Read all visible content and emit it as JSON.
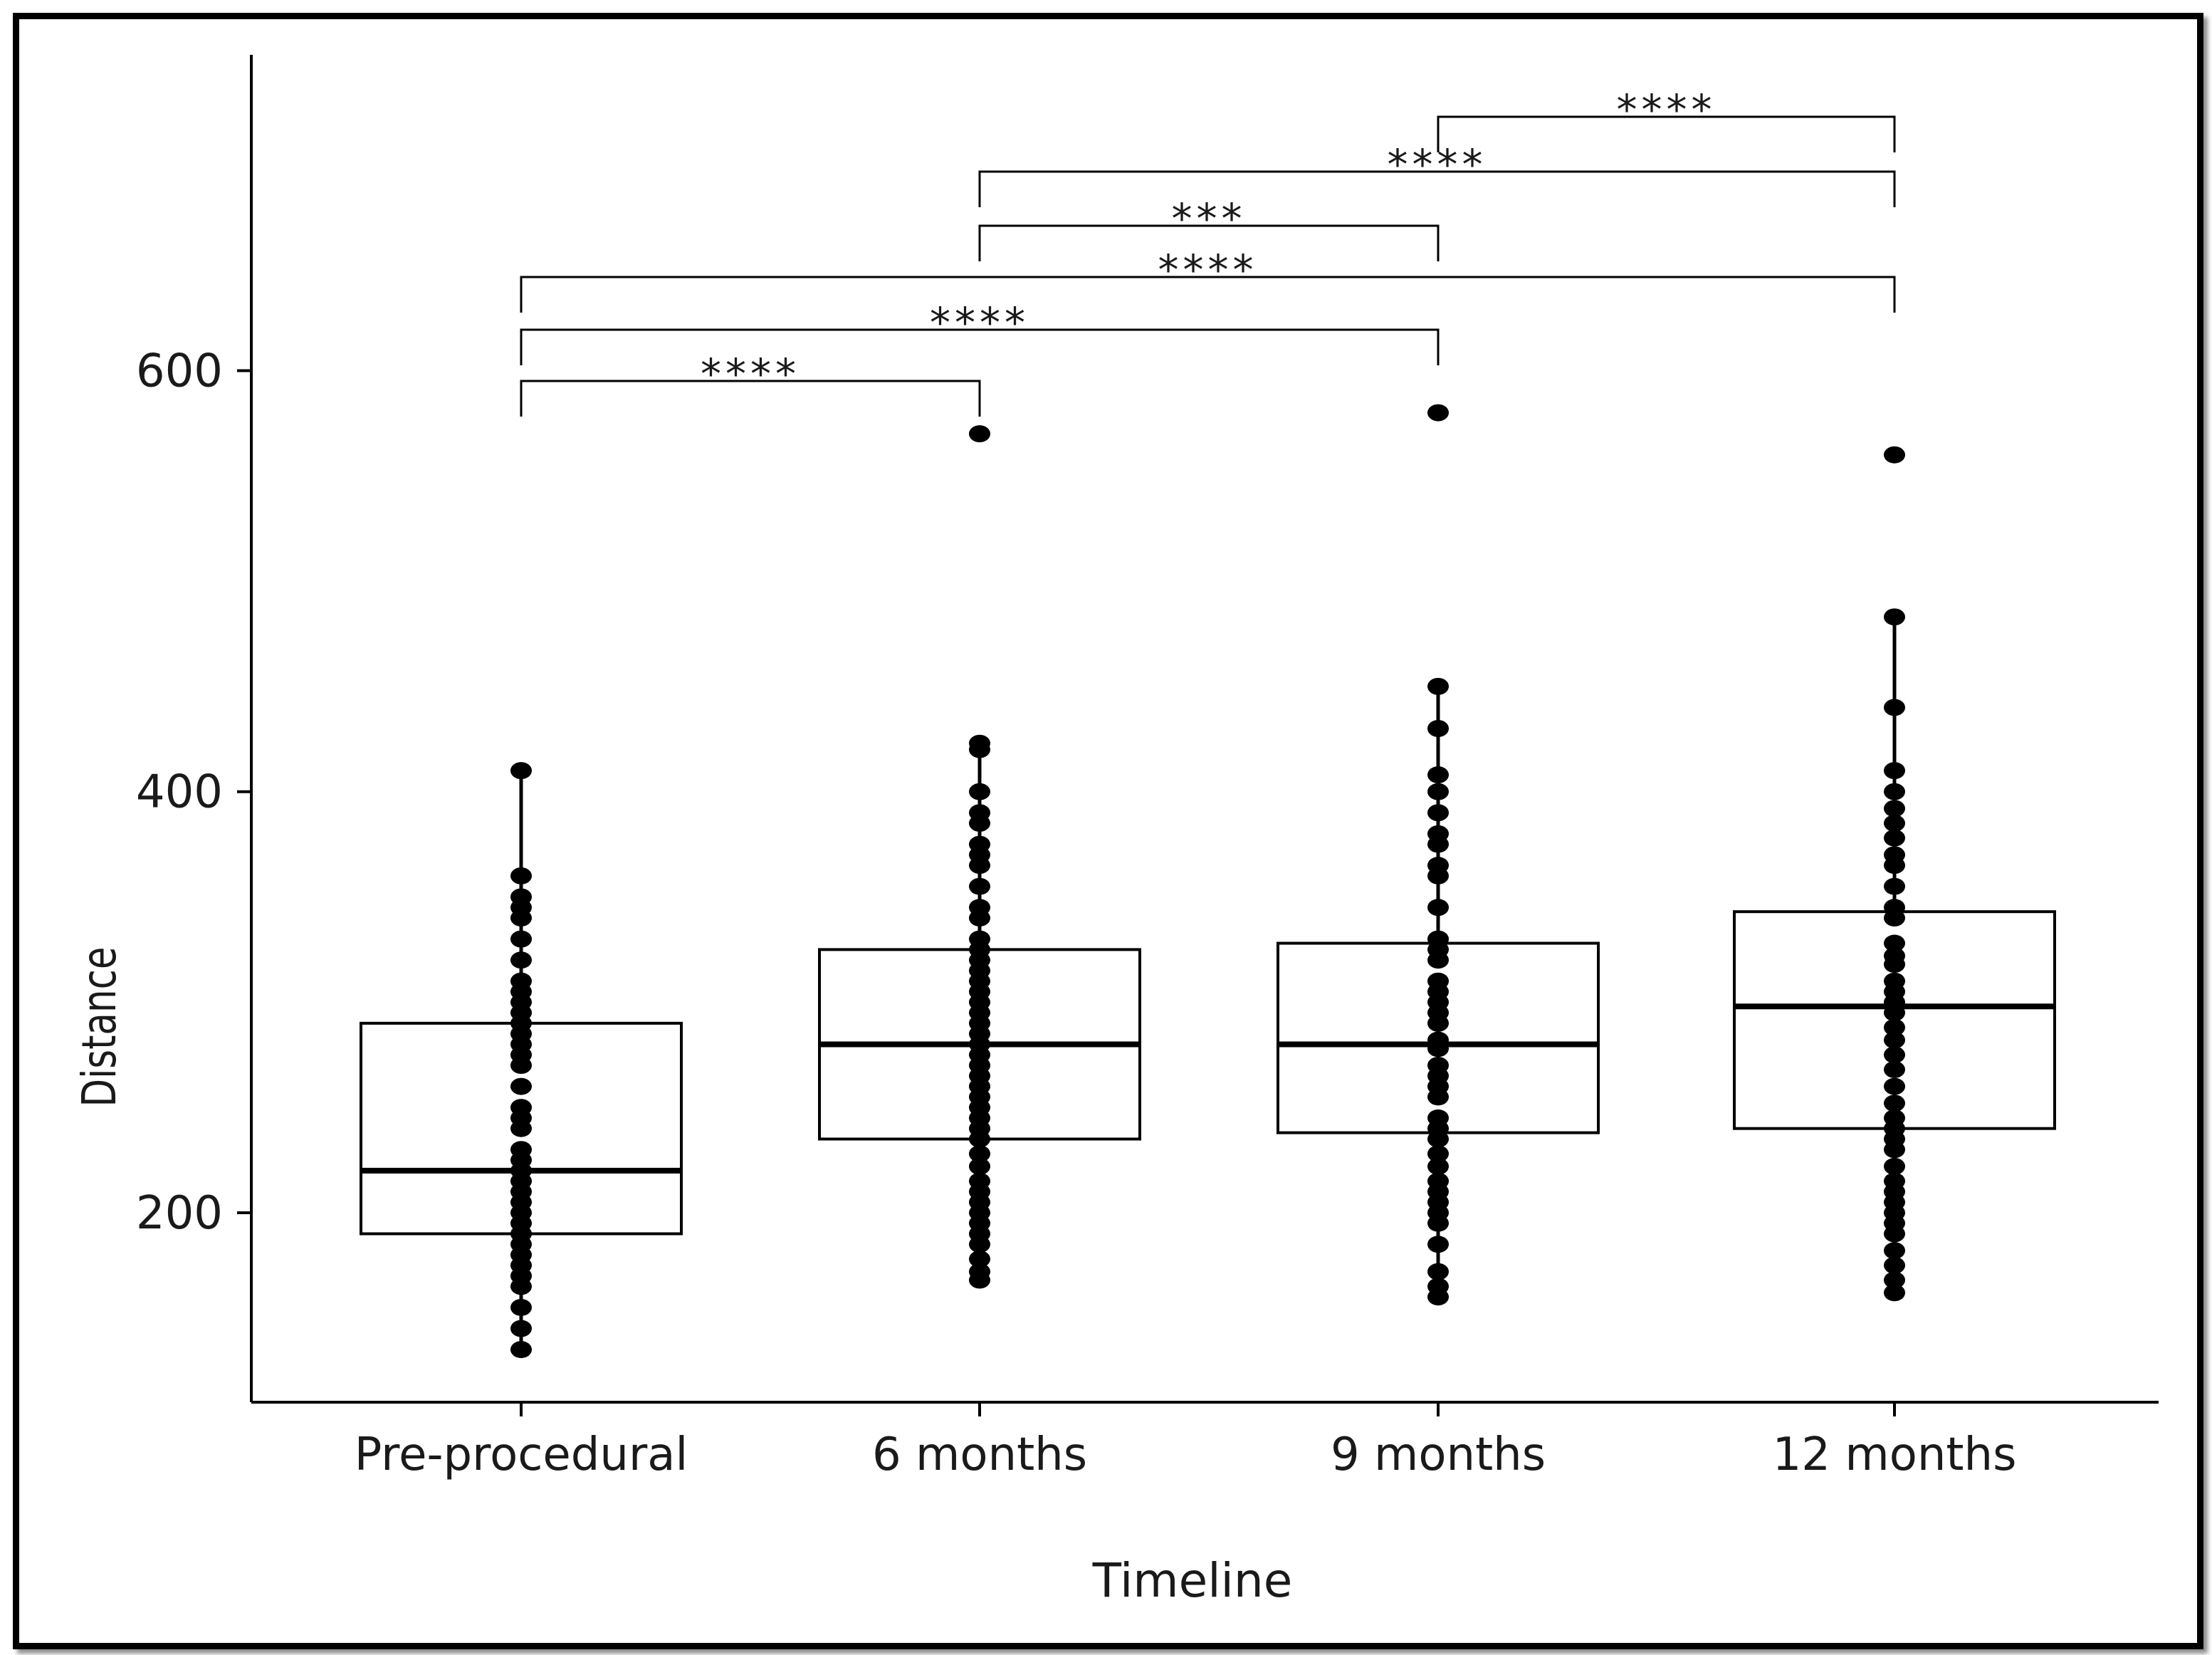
{
  "chart_data": {
    "type": "box",
    "title": "",
    "xlabel": "Timeline",
    "ylabel": "Distance",
    "ylim": [
      110,
      750
    ],
    "yticks": [
      200,
      400,
      600
    ],
    "grid": false,
    "categories": [
      "Pre-procedural",
      "6 months",
      "9 months",
      "12 months"
    ],
    "boxes": [
      {
        "category": "Pre-procedural",
        "q1": 190,
        "median": 220,
        "q3": 290,
        "whisker_low": 135,
        "whisker_high": 410
      },
      {
        "category": "6 months",
        "q1": 235,
        "median": 280,
        "q3": 325,
        "whisker_low": 165,
        "whisker_high": 420
      },
      {
        "category": "9 months",
        "q1": 238,
        "median": 280,
        "q3": 328,
        "whisker_low": 160,
        "whisker_high": 450
      },
      {
        "category": "12 months",
        "q1": 240,
        "median": 298,
        "q3": 343,
        "whisker_low": 162,
        "whisker_high": 483
      }
    ],
    "points": [
      {
        "category": "Pre-procedural",
        "values": [
          135,
          145,
          155,
          165,
          170,
          175,
          180,
          185,
          190,
          195,
          200,
          205,
          210,
          215,
          220,
          225,
          230,
          240,
          245,
          250,
          260,
          270,
          275,
          280,
          285,
          290,
          295,
          300,
          305,
          310,
          320,
          330,
          340,
          345,
          350,
          360,
          410
        ]
      },
      {
        "category": "6 months",
        "values": [
          168,
          172,
          178,
          185,
          190,
          195,
          200,
          205,
          210,
          215,
          222,
          228,
          235,
          240,
          245,
          250,
          255,
          260,
          265,
          270,
          275,
          280,
          285,
          290,
          295,
          300,
          305,
          310,
          315,
          320,
          325,
          330,
          340,
          345,
          355,
          365,
          370,
          375,
          385,
          390,
          400,
          420,
          423,
          570
        ]
      },
      {
        "category": "9 months",
        "values": [
          160,
          165,
          172,
          185,
          195,
          200,
          205,
          210,
          215,
          222,
          228,
          235,
          240,
          245,
          255,
          260,
          265,
          270,
          278,
          282,
          290,
          295,
          300,
          305,
          310,
          320,
          325,
          330,
          345,
          360,
          365,
          375,
          380,
          390,
          400,
          408,
          430,
          450,
          580
        ]
      },
      {
        "category": "12 months",
        "values": [
          162,
          168,
          175,
          182,
          190,
          195,
          200,
          205,
          210,
          215,
          222,
          230,
          235,
          240,
          245,
          252,
          260,
          268,
          275,
          282,
          288,
          295,
          300,
          305,
          310,
          318,
          322,
          328,
          340,
          345,
          355,
          365,
          370,
          378,
          385,
          392,
          400,
          410,
          440,
          483,
          560
        ]
      }
    ],
    "significance": [
      {
        "from": "Pre-procedural",
        "to": "6 months",
        "label": "****"
      },
      {
        "from": "Pre-procedural",
        "to": "9 months",
        "label": "****"
      },
      {
        "from": "Pre-procedural",
        "to": "12 months",
        "label": "****"
      },
      {
        "from": "6 months",
        "to": "9 months",
        "label": "***"
      },
      {
        "from": "6 months",
        "to": "12 months",
        "label": "****"
      },
      {
        "from": "9 months",
        "to": "12 months",
        "label": "****"
      }
    ]
  }
}
